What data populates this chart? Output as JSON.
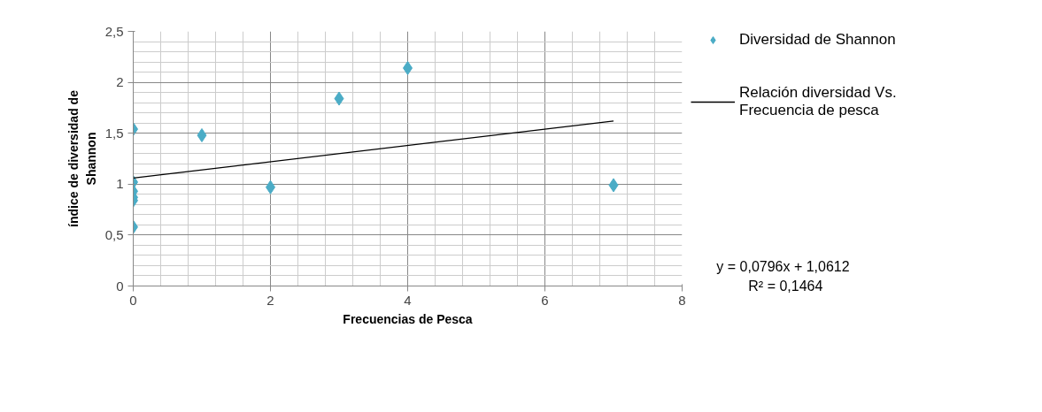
{
  "chart_data": {
    "type": "scatter",
    "xlabel": "Frecuencias de Pesca",
    "ylabel": "índice de diversidad de\nShannon",
    "series": [
      {
        "name": "Diversidad de Shannon",
        "color": "#4bacc6",
        "marker": "diamond",
        "x": [
          0,
          0,
          0,
          0,
          0,
          0,
          1,
          2,
          3,
          4,
          7
        ],
        "values": [
          1.54,
          1.02,
          0.93,
          0.87,
          0.84,
          0.58,
          1.48,
          0.97,
          1.84,
          2.14,
          0.99
        ]
      },
      {
        "name": "Relación diversidad Vs. Frecuencia de pesca",
        "type": "line",
        "color": "#000000",
        "line_style": "solid",
        "x": [
          0,
          7
        ],
        "values": [
          1.06,
          1.62
        ]
      }
    ],
    "xlim": [
      0,
      8
    ],
    "ylim": [
      0,
      2.5
    ],
    "xticks": [
      0,
      2,
      4,
      6,
      8
    ],
    "yticks": [
      0,
      {
        "value": 0.5,
        "label": "0,5"
      },
      1,
      {
        "value": 1.5,
        "label": "1,5"
      },
      2,
      {
        "value": 2.5,
        "label": "2,5"
      }
    ],
    "grid": true,
    "legend": "right",
    "annotations": [
      "y = 0,0796x + 1,0612",
      "R² = 0,1464"
    ]
  }
}
